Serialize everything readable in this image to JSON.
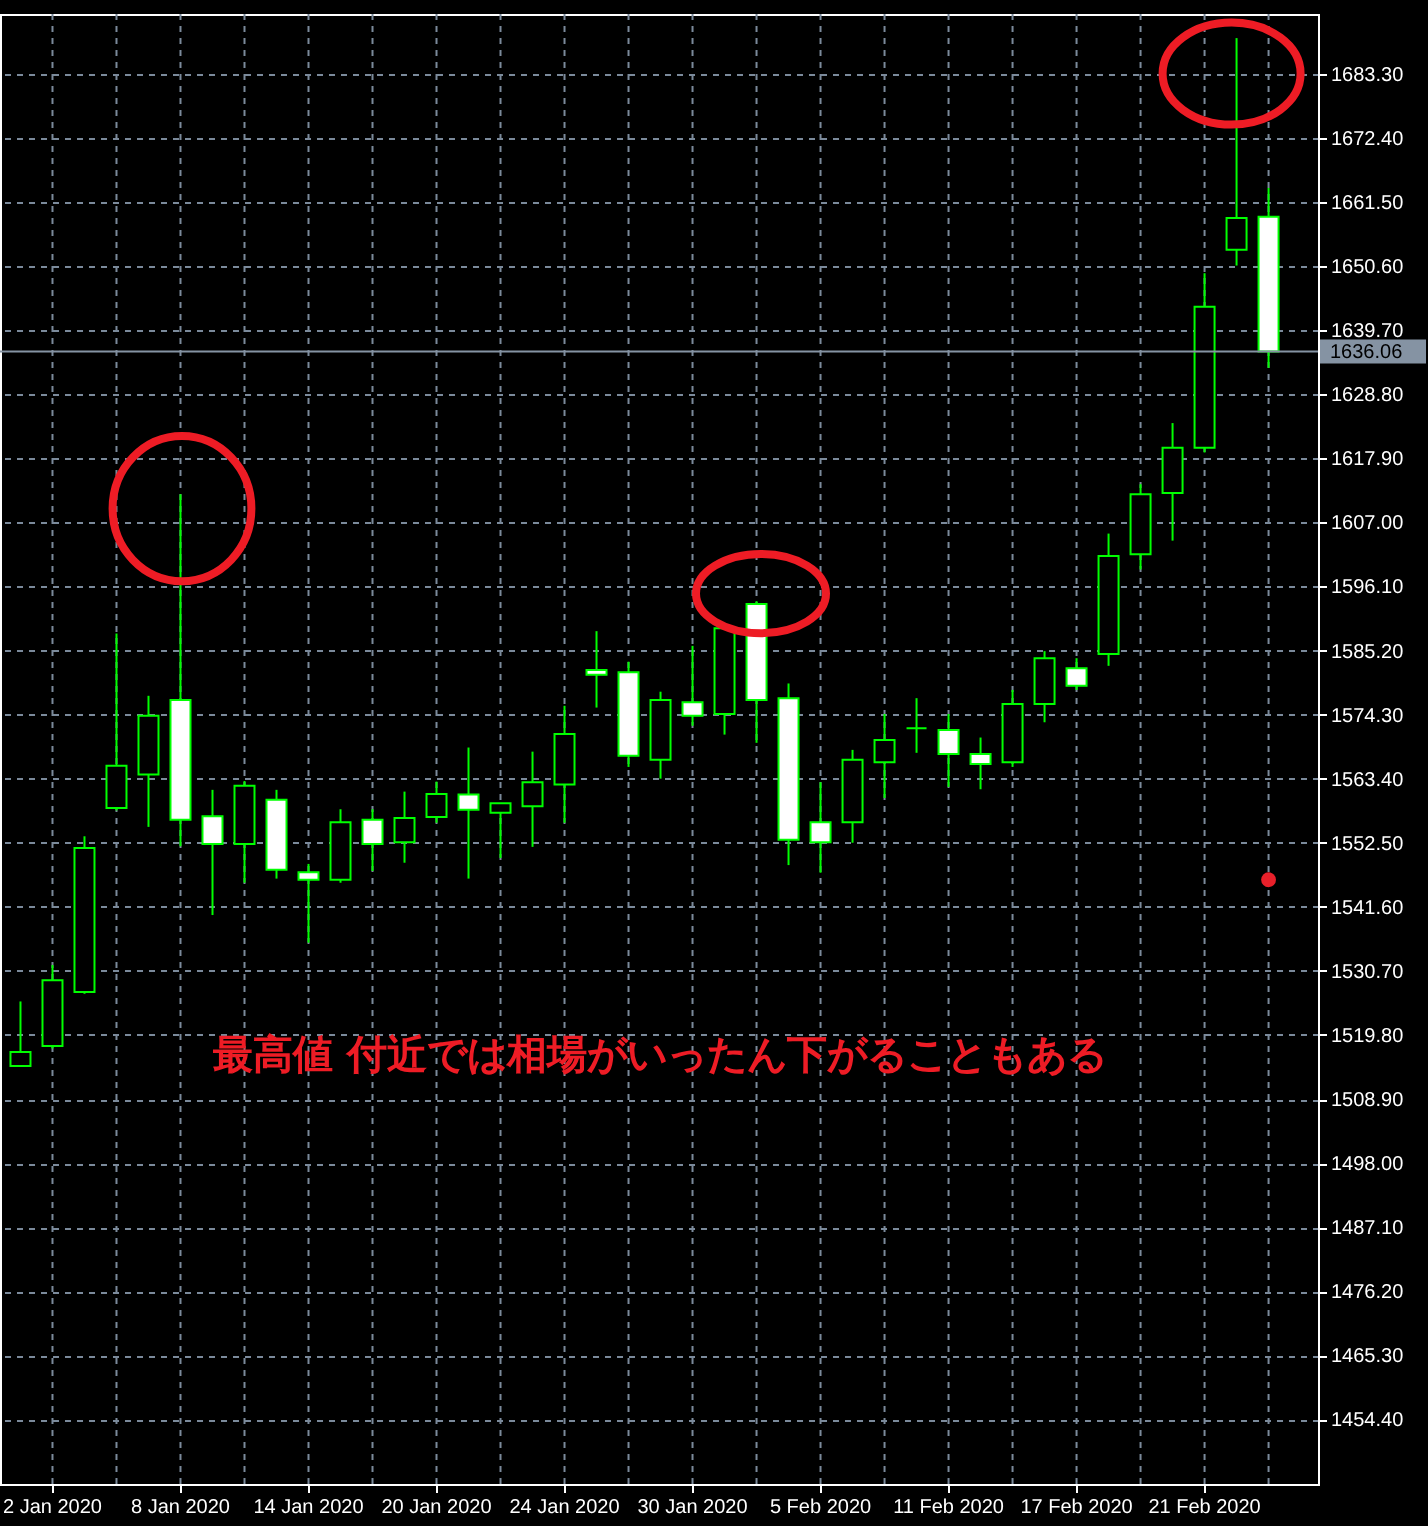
{
  "chart_data": {
    "type": "candlestick",
    "categories": [
      null,
      "2 Jan 2020",
      null,
      null,
      null,
      "8 Jan 2020",
      null,
      null,
      null,
      "14 Jan 2020",
      null,
      null,
      null,
      "20 Jan 2020",
      null,
      null,
      null,
      "24 Jan 2020",
      null,
      null,
      null,
      "30 Jan 2020",
      null,
      null,
      null,
      "5 Feb 2020",
      null,
      null,
      null,
      "11 Feb 2020",
      null,
      null,
      null,
      "17 Feb 2020",
      null,
      null,
      null,
      "21 Feb 2020",
      null,
      null
    ],
    "ohlc": [
      [
        1514.5,
        1525.5,
        1514.5,
        1516.9
      ],
      [
        1517.9,
        1531.7,
        1517.5,
        1529.1
      ],
      [
        1527.1,
        1553.6,
        1526.8,
        1551.6
      ],
      [
        1558.4,
        1588.1,
        1558.0,
        1565.6
      ],
      [
        1564.1,
        1577.5,
        1555.2,
        1574.1
      ],
      [
        1576.8,
        1611.8,
        1551.9,
        1556.4
      ],
      [
        1557.0,
        1561.5,
        1540.2,
        1552.3
      ],
      [
        1552.3,
        1563.0,
        1545.7,
        1562.2
      ],
      [
        1559.8,
        1561.5,
        1546.4,
        1547.9
      ],
      [
        1547.5,
        1548.9,
        1535.5,
        1546.2
      ],
      [
        1546.2,
        1558.2,
        1545.7,
        1556.0
      ],
      [
        1556.4,
        1558.2,
        1547.7,
        1552.3
      ],
      [
        1552.6,
        1561.2,
        1549.1,
        1556.7
      ],
      [
        1556.9,
        1562.9,
        1555.9,
        1560.8
      ],
      [
        1560.7,
        1568.7,
        1546.4,
        1558.1
      ],
      [
        1557.6,
        1559.2,
        1549.9,
        1559.2
      ],
      [
        1558.7,
        1568.0,
        1551.8,
        1562.8
      ],
      [
        1562.4,
        1575.8,
        1555.9,
        1571.0
      ],
      [
        1581.9,
        1588.5,
        1575.5,
        1581.1
      ],
      [
        1581.5,
        1583.3,
        1565.4,
        1567.3
      ],
      [
        1566.6,
        1578.2,
        1563.4,
        1576.8
      ],
      [
        1576.4,
        1586.0,
        1572.4,
        1574.1
      ],
      [
        1574.4,
        1589.5,
        1570.9,
        1589.0
      ],
      [
        1593.1,
        1593.6,
        1569.5,
        1576.8
      ],
      [
        1577.1,
        1579.6,
        1548.7,
        1553.0
      ],
      [
        1556.0,
        1562.8,
        1547.4,
        1552.6
      ],
      [
        1556.0,
        1568.3,
        1552.5,
        1566.6
      ],
      [
        1566.2,
        1574.4,
        1560.1,
        1570.0
      ],
      [
        1572.0,
        1577.1,
        1567.8,
        1572.0
      ],
      [
        1571.7,
        1574.4,
        1562.0,
        1567.6
      ],
      [
        1567.6,
        1570.4,
        1561.6,
        1565.9
      ],
      [
        1566.2,
        1578.5,
        1565.4,
        1576.1
      ],
      [
        1576.1,
        1585.1,
        1573.0,
        1583.9
      ],
      [
        1582.2,
        1583.9,
        1578.5,
        1579.2
      ],
      [
        1584.6,
        1605.1,
        1582.6,
        1601.3
      ],
      [
        1601.6,
        1613.5,
        1599.0,
        1611.8
      ],
      [
        1612.0,
        1623.9,
        1603.9,
        1619.7
      ],
      [
        1619.7,
        1649.4,
        1618.9,
        1643.7
      ],
      [
        1653.4,
        1689.4,
        1650.7,
        1658.8
      ],
      [
        1659.0,
        1663.9,
        1633.3,
        1636.06
      ]
    ],
    "color": "#00ff00",
    "colors": [
      "#000000",
      "#000000",
      "#000000",
      "#000000",
      "#000000",
      "#ffffff",
      "#ffffff",
      "#000000",
      "#ffffff",
      "#ffffff",
      "#000000",
      "#ffffff",
      "#000000",
      "#000000",
      "#ffffff",
      "#000000",
      "#000000",
      "#000000",
      "#ffffff",
      "#ffffff",
      "#000000",
      "#ffffff",
      "#000000",
      "#ffffff",
      "#ffffff",
      "#ffffff",
      "#000000",
      "#000000",
      "#00ff00",
      "#ffffff",
      "#ffffff",
      "#000000",
      "#000000",
      "#ffffff",
      "#000000",
      "#000000",
      "#000000",
      "#000000",
      "#000000",
      "#ffffff"
    ],
    "series": [
      {
        "type": "scatter",
        "color": "#e8202a",
        "marker": "circle",
        "values": [
          null,
          null,
          null,
          null,
          null,
          null,
          null,
          null,
          null,
          null,
          null,
          null,
          null,
          null,
          null,
          null,
          null,
          null,
          null,
          null,
          null,
          null,
          null,
          null,
          null,
          null,
          null,
          null,
          null,
          null,
          null,
          null,
          null,
          null,
          null,
          null,
          null,
          null,
          null,
          1546.2
        ]
      }
    ],
    "ylim": [
      1443.4,
      1693.5
    ],
    "yticks": [
      {
        "value": 1454.4,
        "label": "1454.40"
      },
      {
        "value": 1465.3,
        "label": "1465.30"
      },
      {
        "value": 1476.2,
        "label": "1476.20"
      },
      {
        "value": 1487.1,
        "label": "1487.10"
      },
      {
        "value": 1498.0,
        "label": "1498.00"
      },
      {
        "value": 1508.9,
        "label": "1508.90"
      },
      {
        "value": 1519.8,
        "label": "1519.80"
      },
      {
        "value": 1530.7,
        "label": "1530.70"
      },
      {
        "value": 1541.6,
        "label": "1541.60"
      },
      {
        "value": 1552.5,
        "label": "1552.50"
      },
      {
        "value": 1563.4,
        "label": "1563.40"
      },
      {
        "value": 1574.3,
        "label": "1574.30"
      },
      {
        "value": 1585.2,
        "label": "1585.20"
      },
      {
        "value": 1596.1,
        "label": "1596.10"
      },
      {
        "value": 1607.0,
        "label": "1607.00"
      },
      {
        "value": 1617.9,
        "label": "1617.90"
      },
      {
        "value": 1628.8,
        "label": "1628.80"
      },
      {
        "value": 1639.7,
        "label": "1639.70"
      },
      {
        "value": 1650.6,
        "label": "1650.60"
      },
      {
        "value": 1661.5,
        "label": "1661.50"
      },
      {
        "value": 1672.4,
        "label": "1672.40"
      },
      {
        "value": 1683.3,
        "label": "1683.30"
      }
    ],
    "grid": true,
    "ref_lines": [
      {
        "axis": "y",
        "value": 1636.06,
        "label": "1636.06",
        "color": "#8593a3"
      }
    ],
    "annotations": [
      "最高値 付近では相場がいったん下がることもある"
    ]
  }
}
